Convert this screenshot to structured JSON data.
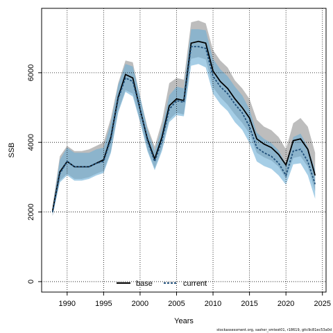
{
  "chart_data": {
    "type": "line",
    "title": "",
    "xlabel": "Years",
    "ylabel": "SSB",
    "xlim": [
      1986.5,
      2025.5
    ],
    "ylim": [
      -300,
      7850
    ],
    "xticks": [
      1990,
      1995,
      2000,
      2005,
      2010,
      2015,
      2020,
      2025
    ],
    "yticks": [
      0,
      2000,
      4000,
      6000
    ],
    "grid": true,
    "legend_position": "bottom-center",
    "x": [
      1988,
      1989,
      1990,
      1991,
      1992,
      1993,
      1994,
      1995,
      1996,
      1997,
      1998,
      1999,
      2000,
      2001,
      2002,
      2003,
      2004,
      2005,
      2006,
      2007,
      2008,
      2009,
      2010,
      2011,
      2012,
      2013,
      2014,
      2015,
      2016,
      2017,
      2018,
      2019,
      2020,
      2021,
      2022,
      2023,
      2024
    ],
    "series": [
      {
        "name": "base",
        "style": "solid",
        "line_color": "#000000",
        "band_color": "#999999",
        "values": [
          2030,
          3150,
          3450,
          3300,
          3300,
          3300,
          3400,
          3500,
          4150,
          5300,
          5950,
          5850,
          4950,
          4100,
          3520,
          4150,
          5050,
          5250,
          5200,
          6850,
          6900,
          6850,
          6050,
          5750,
          5550,
          5250,
          5000,
          4700,
          4100,
          3950,
          3850,
          3650,
          3350,
          4050,
          4100,
          3800,
          3050
        ],
        "lower": [
          1880,
          2900,
          3100,
          2950,
          2950,
          3000,
          3100,
          3180,
          3750,
          4900,
          5500,
          5400,
          4620,
          3800,
          3250,
          3820,
          4650,
          4850,
          4800,
          6400,
          6450,
          6380,
          5580,
          5300,
          5080,
          4800,
          4560,
          4250,
          3700,
          3570,
          3480,
          3300,
          2950,
          3550,
          3600,
          3300,
          2600
        ],
        "upper": [
          2180,
          3600,
          3900,
          3750,
          3750,
          3800,
          3900,
          4000,
          4700,
          5700,
          6350,
          6300,
          5300,
          4450,
          3880,
          4600,
          5700,
          5850,
          5800,
          7450,
          7500,
          7420,
          6650,
          6350,
          6150,
          5780,
          5550,
          5250,
          4650,
          4450,
          4350,
          4150,
          3800,
          4550,
          4700,
          4450,
          3700
        ]
      },
      {
        "name": "current",
        "style": "dashed",
        "line_color": "#1f4e79",
        "band_color": "#6baed6",
        "values": [
          2000,
          3100,
          3450,
          3300,
          3300,
          3300,
          3400,
          3450,
          4100,
          5250,
          5850,
          5750,
          4950,
          4050,
          3450,
          4050,
          4950,
          5200,
          5150,
          6750,
          6750,
          6700,
          5900,
          5600,
          5400,
          5100,
          4850,
          4450,
          3850,
          3700,
          3600,
          3400,
          3050,
          3750,
          3800,
          3450,
          2800
        ],
        "lower": [
          1900,
          2850,
          3050,
          2900,
          2900,
          2950,
          3050,
          3120,
          3700,
          4850,
          5450,
          5320,
          4580,
          3750,
          3200,
          3750,
          4580,
          4780,
          4750,
          6200,
          6250,
          6150,
          5400,
          5100,
          4900,
          4580,
          4360,
          3980,
          3450,
          3320,
          3240,
          3050,
          2780,
          3370,
          3400,
          3050,
          2380
        ],
        "upper": [
          2100,
          3500,
          3850,
          3700,
          3700,
          3700,
          3800,
          3850,
          4550,
          5650,
          6250,
          6180,
          5320,
          4380,
          3750,
          4400,
          5350,
          5600,
          5550,
          7250,
          7250,
          7220,
          6400,
          6100,
          5900,
          5600,
          5350,
          4950,
          4280,
          4100,
          3980,
          3770,
          3380,
          4150,
          4250,
          3870,
          3220
        ]
      }
    ]
  },
  "footnote": "stockassessment.org, sasher_smtest01, r18619, gitc9c81ec53a0d"
}
